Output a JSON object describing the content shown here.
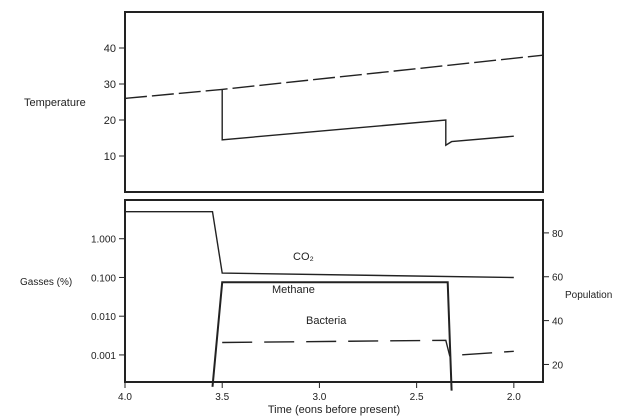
{
  "chart_data": [
    {
      "type": "line",
      "panel": "top",
      "ylabel": "Temperature",
      "ylim": [
        0,
        50
      ],
      "yticks": [
        10,
        20,
        30,
        40
      ],
      "xlim": [
        4.0,
        1.85
      ],
      "grid": false,
      "series": [
        {
          "line_style": "dashed",
          "points": [
            [
              4.0,
              26
            ],
            [
              3.5,
              28.5
            ],
            [
              1.85,
              38
            ]
          ]
        },
        {
          "line_style": "solid",
          "points": [
            [
              3.5,
              28.5
            ],
            [
              3.5,
              14.5
            ],
            [
              2.35,
              20
            ],
            [
              2.35,
              13
            ],
            [
              2.32,
              14
            ],
            [
              2.0,
              15.5
            ]
          ]
        }
      ]
    },
    {
      "type": "line",
      "panel": "bottom",
      "xlabel": "Time (eons before present)",
      "xlim": [
        4.0,
        1.85
      ],
      "xticks": [
        "4.0",
        "3.5",
        "3.0",
        "2.5",
        "2.0"
      ],
      "ylabel_left": "Gasses (%)",
      "ylabel_right": "Population",
      "left_axis": {
        "scale": "log",
        "ylim": [
          0.0002,
          10
        ],
        "ticks": [
          1,
          0.1,
          0.01,
          0.001
        ],
        "tick_labels": [
          "1.000",
          "0.100",
          "0.010",
          "0.001"
        ]
      },
      "right_axis": {
        "scale": "linear",
        "ylim": [
          12,
          95
        ],
        "ticks": [
          20,
          40,
          60,
          80
        ]
      },
      "grid": false,
      "series": [
        {
          "name": "CO₂",
          "axis": "left",
          "line_style": "solid",
          "points": [
            [
              4.0,
              5
            ],
            [
              3.55,
              5
            ],
            [
              3.5,
              0.13
            ],
            [
              2.0,
              0.1
            ]
          ]
        },
        {
          "name": "Methane",
          "axis": "left",
          "line_style": "solid",
          "points": [
            [
              3.55,
              0.00015
            ],
            [
              3.5,
              0.075
            ],
            [
              2.34,
              0.075
            ],
            [
              2.32,
              0.00012
            ]
          ]
        },
        {
          "name": "Bacteria",
          "axis": "right",
          "line_style": "dashed",
          "points": [
            [
              3.5,
              30
            ],
            [
              2.35,
              31
            ],
            [
              2.33,
              24
            ],
            [
              2.0,
              26
            ]
          ]
        }
      ]
    }
  ]
}
